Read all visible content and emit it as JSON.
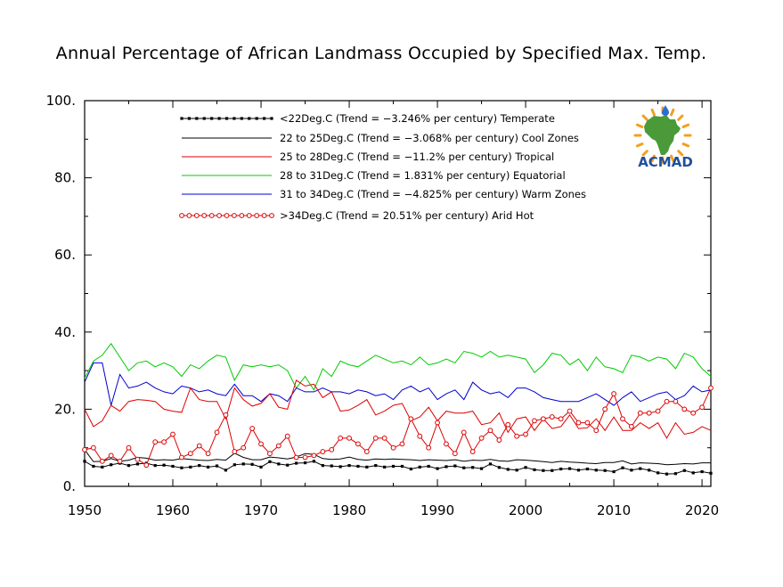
{
  "chart_data": {
    "type": "line",
    "title": "Annual Percentage of African Landmass Occupied by Specified Max. Temp.",
    "xlabel": "",
    "ylabel": "",
    "xlim": [
      1950,
      2021
    ],
    "ylim": [
      0,
      100
    ],
    "x_ticks": [
      "1950",
      "1960",
      "1970",
      "1980",
      "1990",
      "2000",
      "2010",
      "2020"
    ],
    "y_ticks": [
      "0.",
      "20.",
      "40.",
      "60.",
      "80.",
      "100."
    ],
    "grid": false,
    "legend_position": "top-center",
    "x": [
      1950,
      1951,
      1952,
      1953,
      1954,
      1955,
      1956,
      1957,
      1958,
      1959,
      1960,
      1961,
      1962,
      1963,
      1964,
      1965,
      1966,
      1967,
      1968,
      1969,
      1970,
      1971,
      1972,
      1973,
      1974,
      1975,
      1976,
      1977,
      1978,
      1979,
      1980,
      1981,
      1982,
      1983,
      1984,
      1985,
      1986,
      1987,
      1988,
      1989,
      1990,
      1991,
      1992,
      1993,
      1994,
      1995,
      1996,
      1997,
      1998,
      1999,
      2000,
      2001,
      2002,
      2003,
      2004,
      2005,
      2006,
      2007,
      2008,
      2009,
      2010,
      2011,
      2012,
      2013,
      2014,
      2015,
      2016,
      2017,
      2018,
      2019,
      2020,
      2021
    ],
    "series": [
      {
        "name": "<22Deg.C (Trend = −3.246% per century) Temperate",
        "color": "#000000",
        "marker": "filled-square",
        "values": [
          6.5,
          5.2,
          5.0,
          5.6,
          6.0,
          5.4,
          5.8,
          6.0,
          5.4,
          5.5,
          5.2,
          4.8,
          5.0,
          5.4,
          5.0,
          5.3,
          4.2,
          5.6,
          5.8,
          5.7,
          5.0,
          6.4,
          5.8,
          5.5,
          6.0,
          6.1,
          6.5,
          5.4,
          5.3,
          5.1,
          5.4,
          5.2,
          5.0,
          5.4,
          5.0,
          5.2,
          5.2,
          4.5,
          5.0,
          5.2,
          4.6,
          5.1,
          5.3,
          4.8,
          4.9,
          4.6,
          5.8,
          4.9,
          4.4,
          4.2,
          4.9,
          4.3,
          4.1,
          4.1,
          4.5,
          4.6,
          4.2,
          4.5,
          4.2,
          4.1,
          3.8,
          4.8,
          4.2,
          4.6,
          4.2,
          3.5,
          3.2,
          3.3,
          4.1,
          3.5,
          3.8,
          3.4
        ]
      },
      {
        "name": "22 to 25Deg.C (Trend = −3.068% per century) Cool Zones",
        "color": "#000000",
        "marker": "none",
        "values": [
          9.5,
          6.4,
          6.5,
          7.2,
          6.5,
          6.8,
          7.5,
          7.3,
          6.8,
          6.9,
          6.8,
          7.2,
          7.0,
          6.8,
          6.7,
          7.0,
          6.8,
          8.6,
          7.5,
          6.9,
          6.9,
          7.6,
          7.4,
          7.1,
          7.6,
          8.5,
          8.3,
          7.2,
          7.0,
          7.1,
          7.6,
          7.0,
          6.8,
          7.1,
          7.0,
          7.1,
          7.0,
          6.9,
          6.7,
          6.9,
          6.8,
          6.7,
          6.9,
          6.5,
          6.8,
          6.7,
          7.0,
          6.6,
          6.5,
          6.9,
          6.8,
          6.6,
          6.4,
          6.2,
          6.5,
          6.3,
          6.2,
          6.0,
          5.9,
          6.2,
          6.2,
          6.6,
          5.8,
          6.1,
          6.0,
          5.9,
          5.6,
          5.7,
          5.9,
          5.8,
          6.1,
          6.1
        ]
      },
      {
        "name": "25 to 28Deg.C (Trend = −11.2% per century) Tropical",
        "color": "#dd0000",
        "marker": "none",
        "values": [
          20.0,
          15.5,
          17.0,
          21.0,
          19.5,
          22.0,
          22.5,
          22.3,
          22.0,
          20.0,
          19.5,
          19.2,
          25.5,
          22.5,
          22.0,
          22.0,
          17.5,
          25.5,
          22.5,
          20.8,
          21.5,
          24.0,
          20.5,
          20.0,
          27.5,
          26.0,
          26.5,
          23.0,
          24.5,
          19.5,
          19.8,
          21.0,
          22.5,
          18.5,
          19.5,
          21.0,
          21.5,
          17.0,
          18.0,
          20.5,
          17.0,
          19.5,
          19.0,
          19.0,
          19.5,
          16.0,
          16.5,
          19.0,
          14.0,
          17.5,
          18.0,
          14.5,
          17.5,
          15.0,
          15.5,
          18.5,
          15.0,
          15.2,
          17.5,
          14.5,
          18.0,
          14.5,
          14.5,
          16.5,
          15.0,
          16.5,
          12.5,
          16.5,
          13.5,
          14.0,
          15.5,
          14.5
        ]
      },
      {
        "name": "28 to 31Deg.C (Trend = 1.831% per century) Equatorial",
        "color": "#00cc00",
        "marker": "none",
        "values": [
          28.0,
          32.5,
          34.0,
          37.0,
          33.5,
          30.0,
          32.0,
          32.5,
          31.0,
          32.0,
          31.0,
          28.5,
          31.5,
          30.5,
          32.5,
          34.0,
          33.5,
          27.5,
          31.5,
          31.0,
          31.5,
          31.0,
          31.5,
          30.0,
          25.5,
          28.5,
          25.0,
          30.5,
          28.5,
          32.5,
          31.5,
          31.0,
          32.5,
          34.0,
          33.0,
          32.0,
          32.5,
          31.5,
          33.5,
          31.5,
          32.0,
          33.0,
          32.0,
          35.0,
          34.5,
          33.5,
          35.0,
          33.5,
          34.0,
          33.5,
          33.0,
          29.5,
          31.5,
          34.5,
          34.0,
          31.5,
          33.0,
          30.0,
          33.5,
          31.0,
          30.5,
          29.5,
          34.0,
          33.5,
          32.5,
          33.5,
          33.0,
          30.5,
          34.5,
          33.5,
          30.5,
          28.5
        ]
      },
      {
        "name": "31 to 34Deg.C (Trend = −4.825% per century) Warm Zones",
        "color": "#0000cc",
        "marker": "none",
        "values": [
          27.0,
          32.0,
          32.0,
          21.0,
          29.0,
          25.5,
          26.0,
          27.0,
          25.5,
          24.5,
          24.0,
          26.0,
          25.5,
          24.5,
          25.0,
          24.0,
          23.5,
          26.5,
          23.5,
          23.5,
          22.0,
          24.0,
          23.5,
          22.0,
          25.5,
          24.5,
          24.5,
          25.5,
          24.5,
          24.5,
          24.0,
          25.0,
          24.5,
          23.5,
          24.0,
          22.5,
          25.0,
          26.0,
          24.5,
          25.5,
          22.5,
          24.0,
          25.0,
          22.5,
          27.0,
          25.0,
          24.0,
          24.5,
          23.0,
          25.5,
          25.5,
          24.5,
          23.0,
          22.5,
          22.0,
          22.0,
          22.0,
          23.0,
          24.0,
          22.5,
          21.0,
          23.0,
          24.5,
          22.0,
          23.0,
          24.0,
          24.5,
          22.5,
          23.5,
          26.0,
          24.5,
          25.0
        ]
      },
      {
        "name": ">34Deg.C (Trend = 20.51% per century) Arid Hot",
        "color": "#dd0000",
        "marker": "open-circle",
        "values": [
          9.5,
          10.0,
          6.5,
          8.0,
          6.5,
          10.0,
          7.0,
          5.5,
          11.5,
          11.5,
          13.5,
          7.5,
          8.5,
          10.5,
          8.5,
          14.0,
          18.5,
          9.0,
          10.0,
          15.0,
          11.0,
          8.5,
          10.5,
          13.0,
          7.5,
          7.5,
          8.0,
          9.0,
          9.5,
          12.5,
          12.5,
          11.0,
          9.0,
          12.5,
          12.5,
          10.0,
          11.0,
          17.5,
          13.0,
          10.0,
          16.5,
          11.0,
          8.5,
          14.0,
          9.0,
          12.5,
          14.5,
          12.0,
          16.0,
          13.0,
          13.5,
          17.0,
          17.5,
          18.0,
          17.5,
          19.5,
          16.5,
          16.5,
          14.5,
          20.0,
          24.0,
          17.5,
          15.5,
          19.0,
          19.0,
          19.5,
          22.0,
          22.0,
          20.0,
          19.0,
          20.5,
          25.5
        ]
      }
    ],
    "logo": {
      "text": "ACMAD",
      "colors": {
        "map": "#4a9a3a",
        "sun": "#f2a020",
        "drop": "#2a6fd0",
        "text": "#1f4f99"
      }
    }
  }
}
